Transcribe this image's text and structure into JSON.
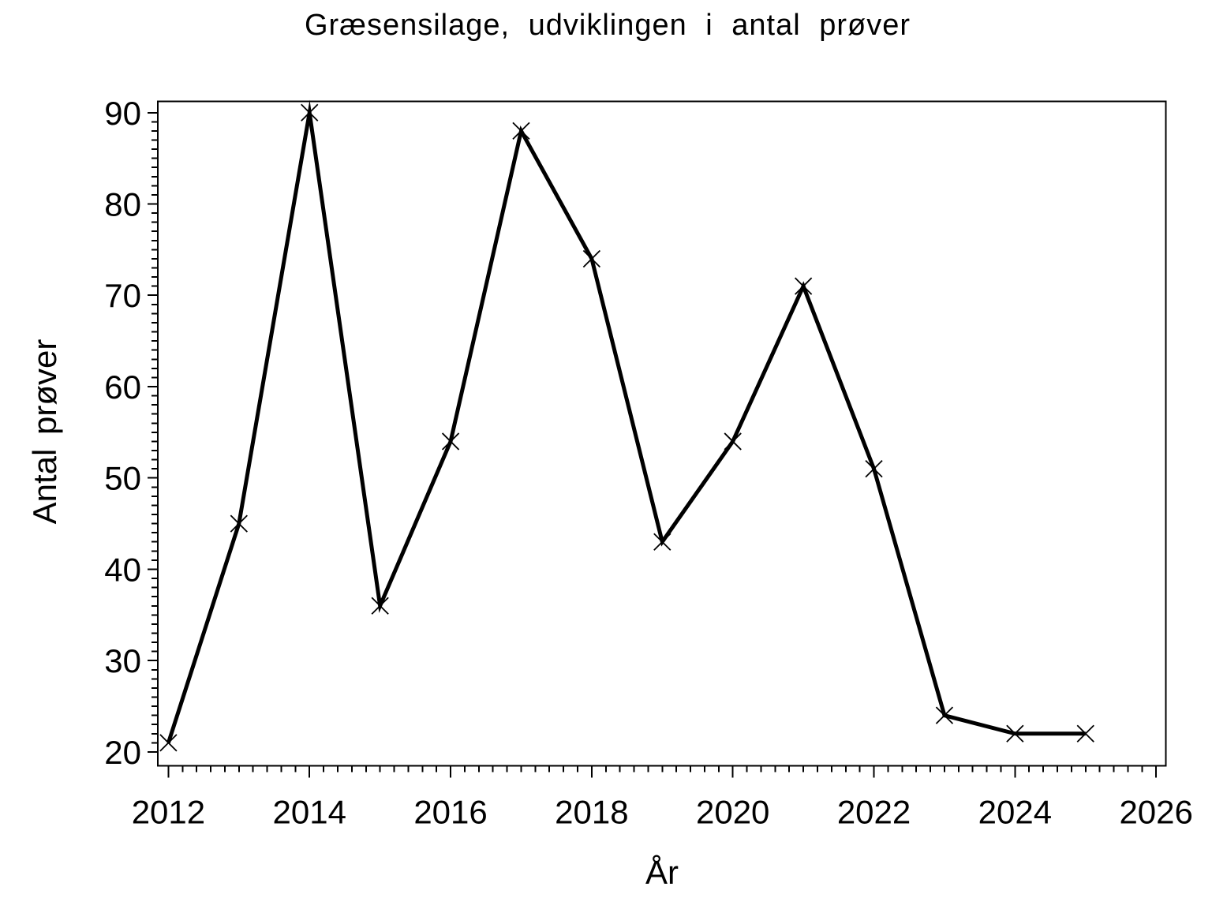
{
  "page": {
    "background_color": "#ffffff",
    "foreground_color": "#000000"
  },
  "chart_data": {
    "type": "line",
    "title": "Græsensilage, udviklingen i antal prøver",
    "xlabel": "År",
    "ylabel": "Antal prøver",
    "x": [
      2012,
      2013,
      2014,
      2015,
      2016,
      2017,
      2018,
      2019,
      2020,
      2021,
      2022,
      2023,
      2024,
      2025
    ],
    "series": [
      {
        "name": "Antal prøver",
        "values": [
          21,
          45,
          90,
          36,
          54,
          88,
          74,
          43,
          54,
          71,
          51,
          24,
          22,
          22
        ],
        "color": "#000000",
        "marker": "x",
        "line_width": 5
      }
    ],
    "xticks": [
      2012,
      2014,
      2016,
      2018,
      2020,
      2022,
      2024,
      2026
    ],
    "yticks": [
      20,
      30,
      40,
      50,
      60,
      70,
      80,
      90
    ],
    "xlim": [
      2011.85,
      2026.14
    ],
    "ylim": [
      18.5,
      91.25
    ],
    "x_minor_step": 0.2,
    "y_minor_step": 1,
    "grid": "off",
    "legend": "none",
    "frame": "box"
  }
}
